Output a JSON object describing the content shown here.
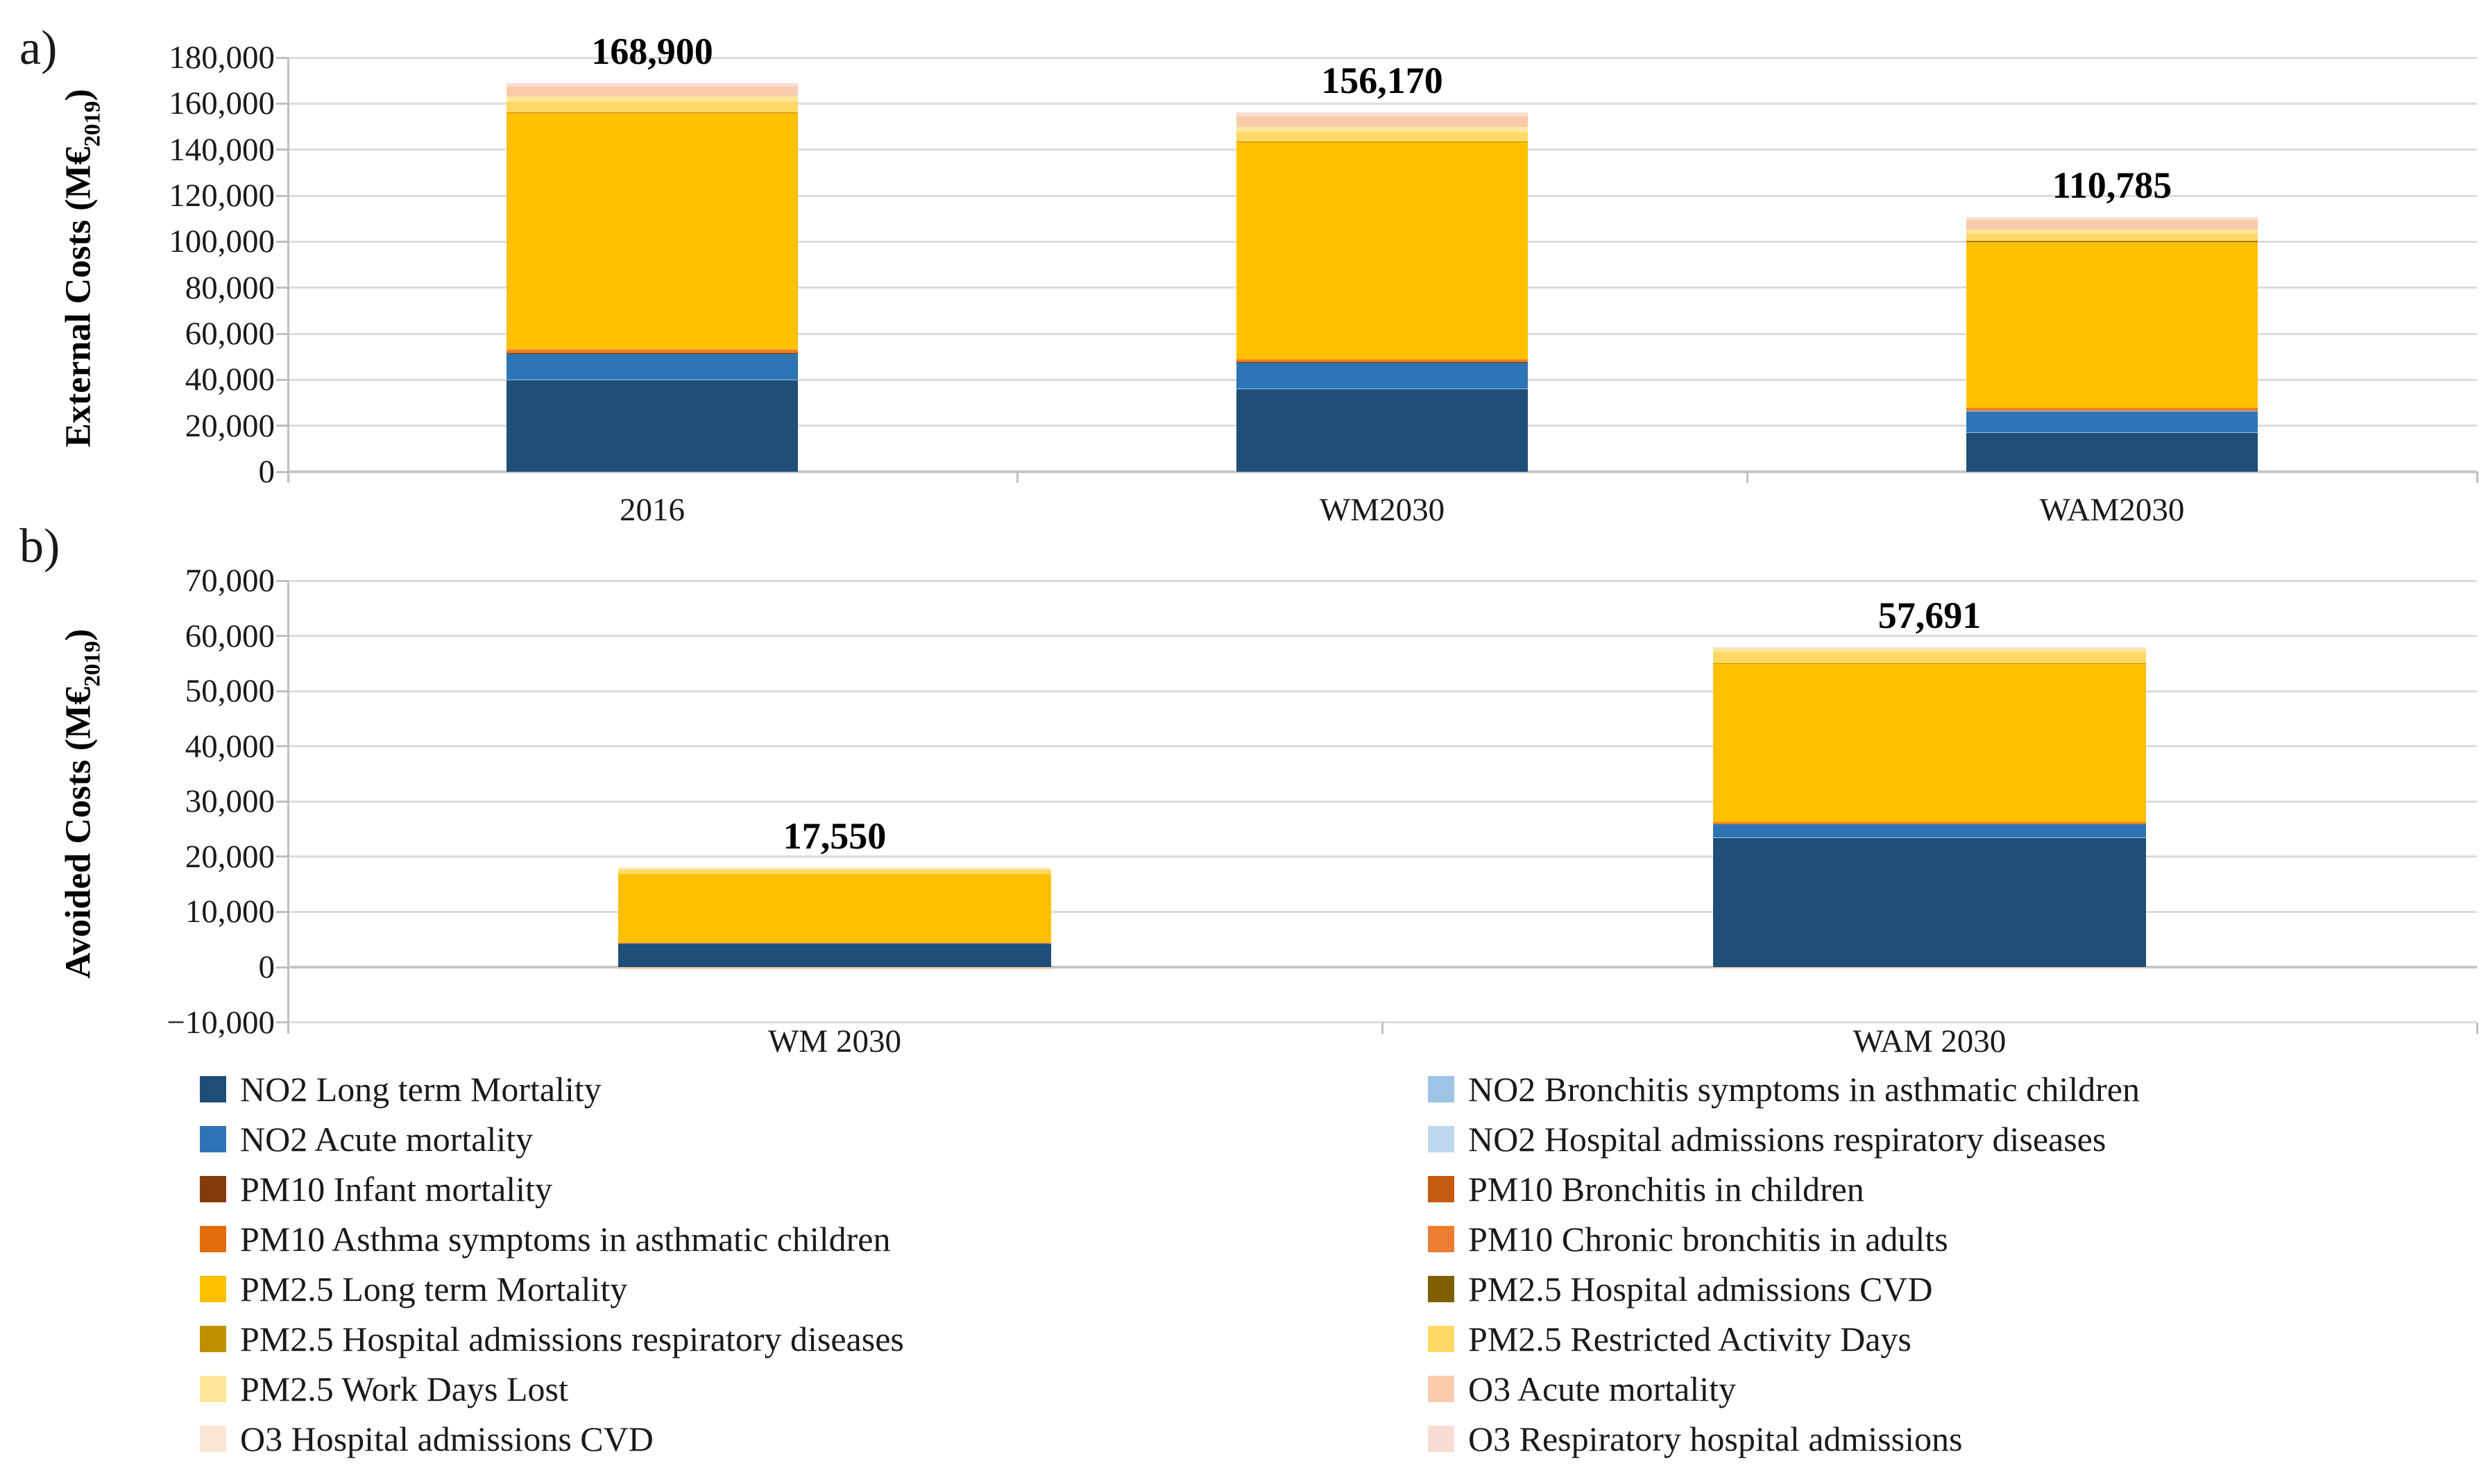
{
  "page": {
    "panel_a_label": "a)",
    "panel_b_label": "b)"
  },
  "series_colors": {
    "NO2 Long term Mortality": "#1F4E79",
    "NO2 Bronchitis symptoms in asthmatic children": "#9DC3E6",
    "NO2 Acute mortality": "#2E75B6",
    "NO2 Hospital admissions respiratory diseases": "#BDD7EE",
    "PM10 Infant mortality": "#843C0C",
    "PM10 Bronchitis in children": "#C55A11",
    "PM10 Asthma symptoms in asthmatic children": "#E26B0A",
    "PM10 Chronic bronchitis in adults": "#ED7D31",
    "PM2.5 Long term Mortality": "#FFC000",
    "PM2.5 Hospital admissions CVD": "#7F6000",
    "PM2.5 Hospital admissions respiratory diseases": "#BF8F00",
    "PM2.5 Restricted Activity Days": "#FFD966",
    "PM2.5 Work Days Lost": "#FFE699",
    "O3 Acute mortality": "#F8CBAD",
    "O3 Hospital admissions CVD": "#FBE5D6",
    "O3 Respiratory hospital admissions": "#F9DCD1"
  },
  "legend": {
    "columns": [
      [
        "NO2 Long term Mortality",
        "NO2 Acute mortality",
        "PM10 Infant mortality",
        "PM10 Asthma symptoms in asthmatic children",
        "PM2.5 Long term Mortality",
        "PM2.5 Hospital admissions respiratory diseases",
        "PM2.5 Work Days Lost",
        "O3 Hospital admissions CVD"
      ],
      [
        "NO2 Bronchitis symptoms in asthmatic children",
        "NO2 Hospital admissions respiratory diseases",
        "PM10 Bronchitis in children",
        "PM10 Chronic bronchitis in adults",
        "PM2.5 Hospital admissions CVD",
        "PM2.5 Restricted Activity Days",
        "O3 Acute mortality",
        "O3 Respiratory hospital admissions"
      ]
    ]
  },
  "chart_data": [
    {
      "id": "a",
      "type": "bar",
      "stacked": true,
      "grid": true,
      "legend_position": "bottom",
      "ylabel_prefix": "External Costs (M€",
      "ylabel_sub": "2019",
      "ylabel_suffix": ")",
      "ylim": [
        0,
        180000
      ],
      "y_ticks": [
        {
          "v": 180000,
          "label": "180,000"
        },
        {
          "v": 160000,
          "label": "160,000"
        },
        {
          "v": 140000,
          "label": "140,000"
        },
        {
          "v": 120000,
          "label": "120,000"
        },
        {
          "v": 100000,
          "label": "100,000"
        },
        {
          "v": 80000,
          "label": "80,000"
        },
        {
          "v": 60000,
          "label": "60,000"
        },
        {
          "v": 40000,
          "label": "40,000"
        },
        {
          "v": 20000,
          "label": "20,000"
        },
        {
          "v": 0,
          "label": "0"
        }
      ],
      "categories": [
        "2016",
        "WM2030",
        "WAM2030"
      ],
      "totals": [
        "168,900",
        "156,170",
        "110,785"
      ],
      "total_values": [
        168900,
        156170,
        110785
      ],
      "series": [
        {
          "name": "NO2 Long term Mortality",
          "values": [
            40000,
            36000,
            17200
          ]
        },
        {
          "name": "NO2 Bronchitis symptoms in asthmatic children",
          "values": [
            100,
            100,
            100
          ]
        },
        {
          "name": "NO2 Acute mortality",
          "values": [
            11400,
            11300,
            9200
          ]
        },
        {
          "name": "NO2 Hospital admissions respiratory diseases",
          "values": [
            100,
            100,
            100
          ]
        },
        {
          "name": "PM10 Infant mortality",
          "values": [
            100,
            100,
            100
          ]
        },
        {
          "name": "PM10 Bronchitis in children",
          "values": [
            200,
            200,
            150
          ]
        },
        {
          "name": "PM10 Asthma symptoms in asthmatic children",
          "values": [
            100,
            100,
            100
          ]
        },
        {
          "name": "PM10 Chronic bronchitis in adults",
          "values": [
            1100,
            1000,
            800
          ]
        },
        {
          "name": "PM2.5 Long term Mortality",
          "values": [
            102900,
            94400,
            72400
          ]
        },
        {
          "name": "PM2.5 Hospital admissions CVD",
          "values": [
            100,
            100,
            100
          ]
        },
        {
          "name": "PM2.5 Hospital admissions respiratory diseases",
          "values": [
            200,
            200,
            150
          ]
        },
        {
          "name": "PM2.5 Restricted Activity Days",
          "values": [
            4300,
            3900,
            3100
          ]
        },
        {
          "name": "PM2.5 Work Days Lost",
          "values": [
            2500,
            2300,
            1800
          ]
        },
        {
          "name": "O3 Acute mortality",
          "values": [
            4300,
            4900,
            4300
          ]
        },
        {
          "name": "O3 Hospital admissions CVD",
          "values": [
            200,
            200,
            185
          ]
        },
        {
          "name": "O3 Respiratory hospital admissions",
          "values": [
            1300,
            1270,
            1000
          ]
        }
      ]
    },
    {
      "id": "b",
      "type": "bar",
      "stacked": true,
      "grid": true,
      "legend_position": "bottom",
      "ylabel_prefix": "Avoided Costs (M€",
      "ylabel_sub": "2019",
      "ylabel_suffix": ")",
      "ylim": [
        -10000,
        70000
      ],
      "y_ticks": [
        {
          "v": 70000,
          "label": "70,000"
        },
        {
          "v": 60000,
          "label": "60,000"
        },
        {
          "v": 50000,
          "label": "50,000"
        },
        {
          "v": 40000,
          "label": "40,000"
        },
        {
          "v": 30000,
          "label": "30,000"
        },
        {
          "v": 20000,
          "label": "20,000"
        },
        {
          "v": 10000,
          "label": "10,000"
        },
        {
          "v": 0,
          "label": "0"
        },
        {
          "v": -10000,
          "label": "−10,000"
        }
      ],
      "categories": [
        "WM 2030",
        "WAM 2030"
      ],
      "totals": [
        "17,550",
        "57,691"
      ],
      "total_values": [
        17550,
        57691
      ],
      "series": [
        {
          "name": "NO2 Long term Mortality",
          "values": [
            4200,
            23400
          ]
        },
        {
          "name": "NO2 Bronchitis symptoms in asthmatic children",
          "values": [
            0,
            50
          ]
        },
        {
          "name": "NO2 Acute mortality",
          "values": [
            150,
            2500
          ]
        },
        {
          "name": "NO2 Hospital admissions respiratory diseases",
          "values": [
            0,
            0
          ]
        },
        {
          "name": "PM10 Infant mortality",
          "values": [
            0,
            0
          ]
        },
        {
          "name": "PM10 Bronchitis in children",
          "values": [
            0,
            0
          ]
        },
        {
          "name": "PM10 Asthma symptoms in asthmatic children",
          "values": [
            0,
            0
          ]
        },
        {
          "name": "PM10 Chronic bronchitis in adults",
          "values": [
            100,
            300
          ]
        },
        {
          "name": "PM2.5 Long term Mortality",
          "values": [
            12400,
            28700
          ]
        },
        {
          "name": "PM2.5 Hospital admissions CVD",
          "values": [
            0,
            50
          ]
        },
        {
          "name": "PM2.5 Hospital admissions respiratory diseases",
          "values": [
            0,
            100
          ]
        },
        {
          "name": "PM2.5 Restricted Activity Days",
          "values": [
            700,
            1900
          ]
        },
        {
          "name": "PM2.5 Work Days Lost",
          "values": [
            400,
            700
          ]
        },
        {
          "name": "O3 Acute mortality",
          "values": [
            -400,
            -300
          ]
        },
        {
          "name": "O3 Hospital admissions CVD",
          "values": [
            0,
            0
          ]
        },
        {
          "name": "O3 Respiratory hospital admissions",
          "values": [
            0,
            291
          ]
        }
      ]
    }
  ]
}
